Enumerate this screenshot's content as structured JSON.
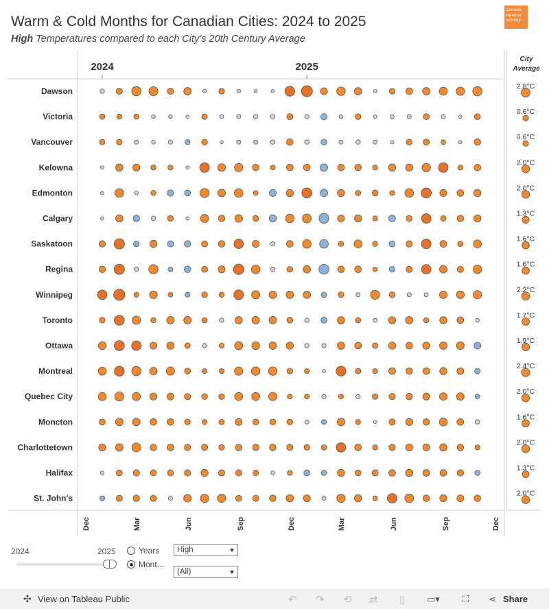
{
  "header": {
    "title": "Warm & Cold Months for Canadian Cities: 2024 to 2025",
    "subtitle_bold": "High",
    "subtitle_rest": "Temperatures compared to each City’s 20th Century Average",
    "logo_text": "Canada weather nerdery"
  },
  "chart_data": {
    "type": "bubble-matrix",
    "measure": "High temperature anomaly vs each city's 20th-century average (°C)",
    "year_labels": [
      "2024",
      "2025"
    ],
    "x_tick_labels": [
      "Dec",
      "Mar",
      "Jun",
      "Sep",
      "Dec",
      "Mar",
      "Jun",
      "Sep",
      "Dec"
    ],
    "months": [
      "Jan 2024",
      "Feb 2024",
      "Mar 2024",
      "Apr 2024",
      "May 2024",
      "Jun 2024",
      "Jul 2024",
      "Aug 2024",
      "Sep 2024",
      "Oct 2024",
      "Nov 2024",
      "Dec 2024",
      "Jan 2025",
      "Feb 2025",
      "Mar 2025",
      "Apr 2025",
      "May 2025",
      "Jun 2025",
      "Jul 2025",
      "Aug 2025",
      "Sep 2025",
      "Oct 2025",
      "Nov 2025"
    ],
    "city_average_header": "City Average",
    "color_warm": "#f08a2c",
    "color_hot": "#e6722a",
    "color_cold": "#8cb4d6",
    "color_neutral": "#d9d2c5",
    "cities": [
      {
        "name": "Dawson",
        "avg": "2.8°C",
        "avg_value": 2.8,
        "values": [
          -0.4,
          1.3,
          4.0,
          3.7,
          1.3,
          2.2,
          0.2,
          1.0,
          0.2,
          0.1,
          0.1,
          4.6,
          6.3,
          1.8,
          3.2,
          2.1,
          0.1,
          1.0,
          1.7,
          2.2,
          2.8,
          3.0,
          4.0
        ]
      },
      {
        "name": "Victoria",
        "avg": "0.6°C",
        "avg_value": 0.6,
        "values": [
          0.8,
          0.7,
          0.7,
          0.2,
          0.2,
          0.1,
          0.9,
          0.3,
          0.3,
          0.4,
          0.4,
          1.2,
          0.4,
          -1.3,
          0.2,
          1.0,
          0.1,
          0.2,
          0.3,
          1.2,
          0.3,
          0.1,
          1.1
        ]
      },
      {
        "name": "Vancouver",
        "avg": "0.6°C",
        "avg_value": 0.6,
        "values": [
          0.8,
          0.9,
          0.3,
          -0.2,
          -0.3,
          -0.6,
          1.0,
          0.1,
          0.3,
          0.3,
          0.4,
          1.5,
          0.4,
          -1.1,
          0.3,
          0.4,
          0.3,
          0.1,
          1.0,
          1.2,
          0.5,
          0.1,
          1.5
        ]
      },
      {
        "name": "Kelowna",
        "avg": "2.0°C",
        "avg_value": 2.0,
        "values": [
          0.1,
          2.0,
          1.9,
          0.7,
          0.7,
          0.1,
          4.4,
          2.5,
          3.0,
          1.5,
          0.6,
          1.6,
          1.6,
          -2.2,
          1.6,
          1.5,
          0.6,
          2.0,
          2.0,
          3.1,
          4.4,
          0.7,
          1.6
        ]
      },
      {
        "name": "Edmonton",
        "avg": "2.0°C",
        "avg_value": 2.0,
        "values": [
          0.1,
          3.3,
          0.2,
          0.7,
          -1.4,
          -1.1,
          3.8,
          2.4,
          3.3,
          0.5,
          -1.7,
          2.1,
          5.0,
          -2.2,
          1.9,
          0.8,
          1.1,
          0.6,
          3.3,
          5.0,
          1.8,
          1.6,
          2.0
        ]
      },
      {
        "name": "Calgary",
        "avg": "1.3°C",
        "avg_value": 1.3,
        "values": [
          0.1,
          2.1,
          -1.4,
          0.4,
          1.0,
          0.1,
          2.8,
          1.5,
          2.4,
          1.1,
          -1.9,
          3.3,
          3.5,
          -4.6,
          1.7,
          1.9,
          0.6,
          -1.6,
          1.1,
          4.3,
          0.9,
          1.5,
          2.0
        ]
      },
      {
        "name": "Saskatoon",
        "avg": "1.6°C",
        "avg_value": 1.6,
        "values": [
          1.4,
          5.2,
          -1.0,
          2.0,
          -1.2,
          -1.4,
          1.2,
          1.5,
          4.2,
          1.8,
          -0.3,
          1.6,
          3.3,
          -3.3,
          0.7,
          2.7,
          0.7,
          -1.2,
          1.4,
          4.4,
          1.7,
          0.8,
          2.7
        ]
      },
      {
        "name": "Regina",
        "avg": "1.6°C",
        "avg_value": 1.6,
        "values": [
          1.5,
          5.3,
          -0.4,
          4.0,
          -0.5,
          -1.5,
          1.2,
          1.8,
          5.4,
          3.3,
          -0.4,
          1.0,
          2.1,
          -4.8,
          1.5,
          1.6,
          0.5,
          -1.0,
          1.3,
          4.3,
          2.2,
          1.3,
          3.2
        ]
      },
      {
        "name": "Winnipeg",
        "avg": "2.2°C",
        "avg_value": 2.2,
        "values": [
          4.2,
          6.4,
          0.6,
          2.4,
          0.5,
          -0.6,
          1.0,
          0.7,
          4.5,
          2.9,
          2.3,
          2.3,
          2.1,
          -0.8,
          1.0,
          0.3,
          3.8,
          1.1,
          0.3,
          0.3,
          2.3,
          2.4,
          3.0
        ]
      },
      {
        "name": "Toronto",
        "avg": "1.7°C",
        "avg_value": 1.7,
        "values": [
          1.0,
          4.8,
          3.0,
          0.7,
          2.3,
          2.2,
          0.8,
          0.4,
          2.1,
          2.3,
          2.2,
          1.1,
          -0.4,
          -1.1,
          2.1,
          0.8,
          0.2,
          1.9,
          2.1,
          0.7,
          2.0,
          1.6,
          0.2
        ]
      },
      {
        "name": "Ottawa",
        "avg": "1.9°C",
        "avg_value": 1.9,
        "values": [
          2.6,
          4.9,
          4.3,
          1.8,
          2.1,
          0.9,
          0.4,
          0.6,
          2.8,
          2.5,
          2.2,
          2.0,
          0.4,
          -0.4,
          2.1,
          1.6,
          0.9,
          2.0,
          1.7,
          2.0,
          2.2,
          2.4,
          -1.7
        ]
      },
      {
        "name": "Montreal",
        "avg": "2.4°C",
        "avg_value": 2.4,
        "values": [
          2.8,
          4.7,
          4.0,
          2.2,
          2.9,
          1.1,
          0.6,
          0.6,
          3.0,
          3.2,
          3.2,
          1.0,
          0.6,
          0.1,
          4.6,
          0.9,
          0.6,
          1.7,
          1.5,
          1.7,
          2.0,
          1.7,
          -0.9
        ]
      },
      {
        "name": "Quebec City",
        "avg": "2.0°C",
        "avg_value": 2.0,
        "values": [
          2.8,
          3.8,
          2.8,
          1.9,
          1.7,
          1.3,
          1.1,
          1.0,
          2.7,
          2.7,
          3.0,
          0.6,
          0.6,
          0.4,
          0.6,
          -0.4,
          0.9,
          1.4,
          1.5,
          1.8,
          2.3,
          2.2,
          -0.5
        ]
      },
      {
        "name": "Moncton",
        "avg": "1.6°C",
        "avg_value": 1.6,
        "values": [
          1.2,
          2.3,
          2.3,
          1.6,
          1.6,
          1.0,
          0.6,
          0.8,
          1.7,
          1.1,
          1.1,
          1.0,
          -0.3,
          -0.6,
          2.4,
          0.7,
          0.1,
          1.3,
          1.9,
          1.5,
          2.7,
          1.6,
          0.4
        ]
      },
      {
        "name": "Charlottetown",
        "avg": "2.0°C",
        "avg_value": 2.0,
        "values": [
          1.9,
          2.3,
          3.6,
          1.5,
          1.6,
          1.3,
          1.3,
          1.0,
          1.5,
          1.4,
          1.5,
          1.3,
          1.0,
          0.8,
          4.2,
          1.6,
          0.7,
          1.4,
          1.9,
          1.8,
          2.1,
          1.5,
          0.6
        ]
      },
      {
        "name": "Halifax",
        "avg": "1.3°C",
        "avg_value": 1.3,
        "values": [
          0.2,
          1.2,
          1.3,
          1.2,
          1.2,
          1.3,
          1.9,
          1.3,
          1.3,
          0.9,
          0.2,
          0.6,
          -1.1,
          -0.8,
          2.0,
          1.1,
          1.3,
          1.6,
          2.1,
          1.7,
          1.6,
          1.4,
          -0.7
        ]
      },
      {
        "name": "St. John's",
        "avg": "2.0°C",
        "avg_value": 2.0,
        "values": [
          -0.6,
          1.3,
          1.4,
          1.3,
          0.3,
          2.3,
          3.0,
          2.9,
          1.2,
          1.3,
          1.5,
          2.1,
          1.8,
          0.3,
          3.0,
          2.0,
          0.5,
          4.3,
          3.4,
          1.5,
          1.9,
          1.7,
          1.5
        ]
      }
    ]
  },
  "controls": {
    "slider_min": "2024",
    "slider_max": "2025",
    "radio_years": "Years",
    "radio_months": "Mont...",
    "selected_radio": "months",
    "select_measure": "High",
    "select_filter": "(All)"
  },
  "toolbar": {
    "view_label": "View on Tableau Public",
    "share_label": "Share"
  }
}
